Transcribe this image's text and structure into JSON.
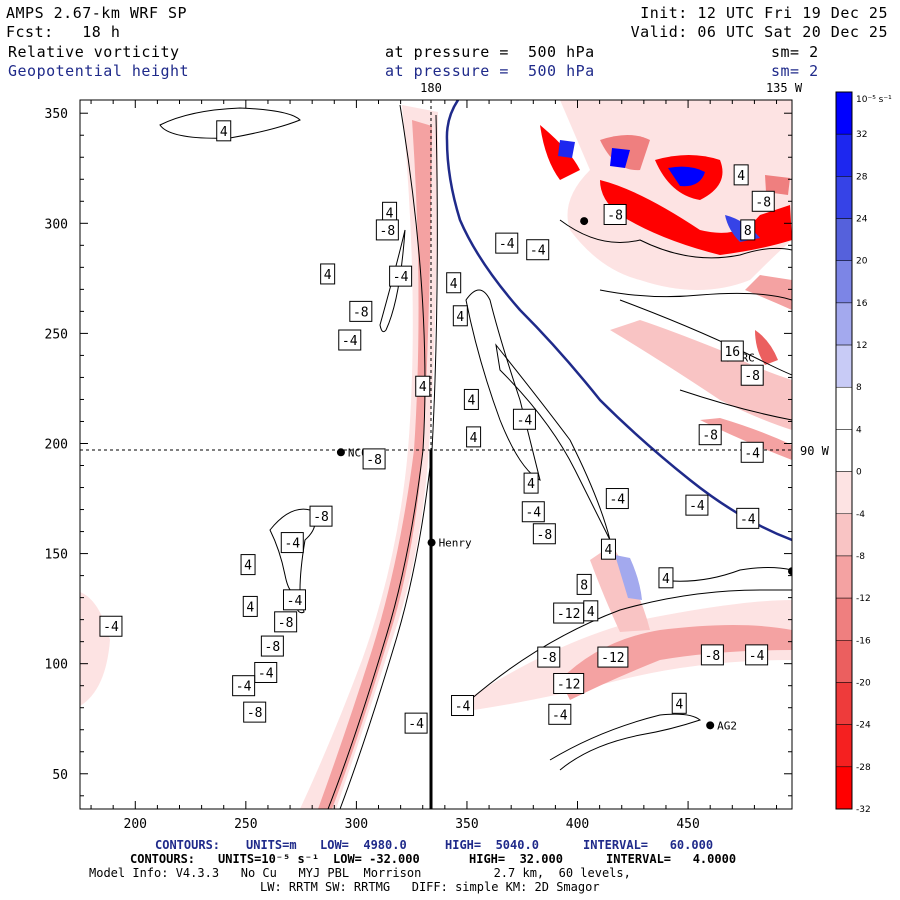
{
  "header": {
    "left": [
      "AMPS 2.67-km WRF SP",
      "Fcst:   18 h"
    ],
    "right": [
      "Init: 12 UTC Fri 19 Dec 25",
      "Valid: 06 UTC Sat 20 Dec 25"
    ],
    "field1": {
      "name": "Relative vorticity",
      "pressure": "at pressure =  500 hPa",
      "sm": "sm= 2"
    },
    "field2": {
      "name": "Geopotential height",
      "pressure": "at pressure =  500 hPa",
      "sm": "sm= 2"
    }
  },
  "chart_data": {
    "type": "heatmap",
    "title": "Relative vorticity and Geopotential height at 500 hPa",
    "x_ticks": [
      200,
      250,
      300,
      350,
      400,
      450
    ],
    "y_ticks": [
      50,
      100,
      150,
      200,
      250,
      300,
      350
    ],
    "xlim": [
      175,
      497
    ],
    "ylim": [
      34,
      356
    ],
    "meridian_labels": {
      "top_180": "180",
      "top_135w": "135 W",
      "right_90w": "90 W"
    },
    "dashed_meridian_x": 333,
    "dashed_parallel_y": 196,
    "stations": [
      {
        "name": "NCO",
        "x": 293,
        "y": 196
      },
      {
        "name": "Henry",
        "x": 334,
        "y": 155
      },
      {
        "name": "HRC",
        "x": 468,
        "y": 239
      },
      {
        "name": "AG2",
        "x": 460,
        "y": 72
      },
      {
        "name": "",
        "x": 403,
        "y": 301
      },
      {
        "name": "",
        "x": 497,
        "y": 142
      }
    ],
    "contour_labels": [
      {
        "text": "4",
        "x": 240,
        "y": 342
      },
      {
        "text": "4",
        "x": 315,
        "y": 305
      },
      {
        "text": "-8",
        "x": 314,
        "y": 297
      },
      {
        "text": "-4",
        "x": 320,
        "y": 276
      },
      {
        "text": "4",
        "x": 287,
        "y": 277
      },
      {
        "text": "-8",
        "x": 302,
        "y": 260
      },
      {
        "text": "-4",
        "x": 297,
        "y": 247
      },
      {
        "text": "4",
        "x": 344,
        "y": 273
      },
      {
        "text": "4",
        "x": 347,
        "y": 258
      },
      {
        "text": "-4",
        "x": 368,
        "y": 291
      },
      {
        "text": "4",
        "x": 330,
        "y": 226
      },
      {
        "text": "4",
        "x": 352,
        "y": 220
      },
      {
        "text": "4",
        "x": 353,
        "y": 203
      },
      {
        "text": "-4",
        "x": 376,
        "y": 211
      },
      {
        "text": "-8",
        "x": 308,
        "y": 193
      },
      {
        "text": "4",
        "x": 379,
        "y": 182
      },
      {
        "text": "-4",
        "x": 380,
        "y": 169
      },
      {
        "text": "-8",
        "x": 284,
        "y": 167
      },
      {
        "text": "-4",
        "x": 271,
        "y": 155
      },
      {
        "text": "4",
        "x": 251,
        "y": 145
      },
      {
        "text": "4",
        "x": 252,
        "y": 126
      },
      {
        "text": "-4",
        "x": 272,
        "y": 129
      },
      {
        "text": "-8",
        "x": 268,
        "y": 119
      },
      {
        "text": "-8",
        "x": 262,
        "y": 108
      },
      {
        "text": "-4",
        "x": 189,
        "y": 117
      },
      {
        "text": "-4",
        "x": 259,
        "y": 96
      },
      {
        "text": "-8",
        "x": 254,
        "y": 78
      },
      {
        "text": "-4",
        "x": 249,
        "y": 90
      },
      {
        "text": "-12",
        "x": 396,
        "y": 123
      },
      {
        "text": "8",
        "x": 403,
        "y": 136
      },
      {
        "text": "-8",
        "x": 385,
        "y": 159
      },
      {
        "text": "4",
        "x": 414,
        "y": 152
      },
      {
        "text": "-4",
        "x": 418,
        "y": 175
      },
      {
        "text": "4",
        "x": 406,
        "y": 124
      },
      {
        "text": "4",
        "x": 440,
        "y": 139
      },
      {
        "text": "-12",
        "x": 416,
        "y": 103
      },
      {
        "text": "-8",
        "x": 387,
        "y": 103
      },
      {
        "text": "-12",
        "x": 396,
        "y": 91
      },
      {
        "text": "-8",
        "x": 461,
        "y": 104
      },
      {
        "text": "-4",
        "x": 481,
        "y": 104
      },
      {
        "text": "-4",
        "x": 348,
        "y": 81
      },
      {
        "text": "-4",
        "x": 392,
        "y": 77
      },
      {
        "text": "4",
        "x": 446,
        "y": 82
      },
      {
        "text": "-4",
        "x": 327,
        "y": 73
      },
      {
        "text": "-8",
        "x": 417,
        "y": 304
      },
      {
        "text": "-4",
        "x": 382,
        "y": 288
      },
      {
        "text": "4",
        "x": 474,
        "y": 322
      },
      {
        "text": "-8",
        "x": 484,
        "y": 310
      },
      {
        "text": "8",
        "x": 477,
        "y": 297
      },
      {
        "text": "16",
        "x": 470,
        "y": 242
      },
      {
        "text": "-8",
        "x": 479,
        "y": 231
      },
      {
        "text": "-8",
        "x": 460,
        "y": 204
      },
      {
        "text": "-4",
        "x": 479,
        "y": 196
      },
      {
        "text": "-4",
        "x": 454,
        "y": 172
      },
      {
        "text": "-4",
        "x": 477,
        "y": 166
      }
    ],
    "colorbar": {
      "unit_label": "10⁻⁵ s⁻¹",
      "labels": [
        "32",
        "28",
        "24",
        "20",
        "16",
        "12",
        "8",
        "4",
        "0",
        "-4",
        "-8",
        "-12",
        "-16",
        "-20",
        "-24",
        "-28",
        "-32"
      ],
      "colors": [
        "#0000ff",
        "#1d27f0",
        "#3643e7",
        "#5561dc",
        "#7c85e6",
        "#a3a9ee",
        "#c8cbf6",
        "#ffffff",
        "#ffffff",
        "#fde3e3",
        "#f9c4c4",
        "#f4a2a2",
        "#ef7f7f",
        "#eb5f5f",
        "#ee3b3b",
        "#f52020",
        "#ff0000"
      ]
    },
    "footer": {
      "line1": {
        "contours": "CONTOURS:",
        "units": "UNITS=m",
        "low": "LOW=  4980.0",
        "high": "HIGH=  5040.0",
        "interval": "INTERVAL=   60.000"
      },
      "line2": {
        "contours": "CONTOURS:",
        "units": "UNITS=10⁻⁵ s⁻¹",
        "low": "LOW= -32.000",
        "high": "HIGH=  32.000",
        "interval": "INTERVAL=   4.0000"
      },
      "line3": "Model Info: V4.3.3   No Cu   MYJ PBL  Morrison          2.7 km,  60 levels,",
      "line4": "LW: RRTM SW: RRTMG   DIFF: simple KM: 2D Smagor"
    }
  }
}
